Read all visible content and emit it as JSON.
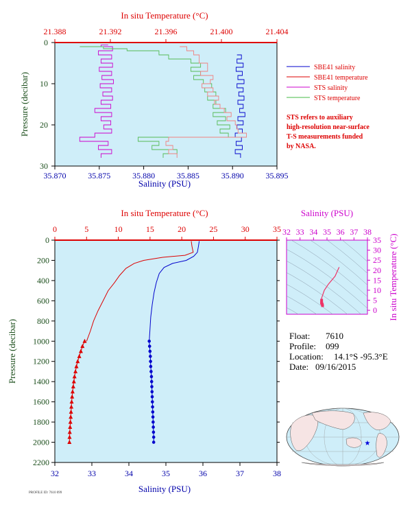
{
  "chart_data": [
    {
      "type": "line",
      "title_top": "In situ Temperature (°C)",
      "xlabel": "Salinity (PSU)",
      "ylabel": "Pressure (decibar)",
      "salinity_range": [
        35.87,
        35.895
      ],
      "salinity_ticks": [
        "35.870",
        "35.875",
        "35.880",
        "35.885",
        "35.890",
        "35.895"
      ],
      "temperature_range": [
        21.388,
        21.404
      ],
      "temperature_ticks": [
        "21.388",
        "21.392",
        "21.396",
        "21.400",
        "21.404"
      ],
      "pressure_range": [
        0,
        30
      ],
      "pressure_ticks": [
        "0",
        "10",
        "20",
        "30"
      ],
      "legend": [
        {
          "name": "SBE41 salinity",
          "color": "#0000cc"
        },
        {
          "name": "SBE41 temperature",
          "color": "#dd0000"
        },
        {
          "name": "STS salinity",
          "color": "#cc00cc"
        },
        {
          "name": "STS temperature",
          "color": "#44bb44"
        }
      ],
      "note": [
        "STS refers to auxiliary",
        "high-resolution near-surface",
        "T-S measurements funded",
        "by NASA."
      ],
      "series": [
        {
          "name": "SBE41 salinity",
          "axis": "salinity",
          "points": [
            [
              35.8905,
              3
            ],
            [
              35.891,
              4
            ],
            [
              35.8905,
              5
            ],
            [
              35.8912,
              6
            ],
            [
              35.8904,
              7
            ],
            [
              35.8911,
              8
            ],
            [
              35.8906,
              9
            ],
            [
              35.8913,
              10
            ],
            [
              35.8905,
              11
            ],
            [
              35.8912,
              12
            ],
            [
              35.8907,
              13
            ],
            [
              35.8913,
              14
            ],
            [
              35.8906,
              15
            ],
            [
              35.8912,
              16
            ],
            [
              35.8908,
              17
            ],
            [
              35.8914,
              18
            ],
            [
              35.8906,
              19
            ],
            [
              35.8912,
              20
            ],
            [
              35.8905,
              21
            ],
            [
              35.8911,
              22
            ],
            [
              35.8903,
              23
            ],
            [
              35.891,
              24
            ],
            [
              35.8904,
              25
            ],
            [
              35.8911,
              26
            ],
            [
              35.8903,
              27
            ],
            [
              35.8909,
              28
            ]
          ]
        },
        {
          "name": "STS salinity",
          "axis": "salinity",
          "points": [
            [
              35.876,
              0.6
            ],
            [
              35.8752,
              1
            ],
            [
              35.8765,
              2
            ],
            [
              35.8749,
              3
            ],
            [
              35.8764,
              4
            ],
            [
              35.8752,
              5
            ],
            [
              35.8765,
              6
            ],
            [
              35.875,
              7
            ],
            [
              35.8764,
              8
            ],
            [
              35.8753,
              9
            ],
            [
              35.8766,
              10
            ],
            [
              35.8751,
              11
            ],
            [
              35.8764,
              12
            ],
            [
              35.8754,
              13
            ],
            [
              35.8765,
              14
            ],
            [
              35.8752,
              15
            ],
            [
              35.8763,
              16
            ],
            [
              35.8745,
              17
            ],
            [
              35.8764,
              18
            ],
            [
              35.8752,
              19
            ],
            [
              35.8763,
              20
            ],
            [
              35.8755,
              21
            ],
            [
              35.8764,
              22
            ],
            [
              35.8745,
              23
            ],
            [
              35.8728,
              24
            ],
            [
              35.876,
              25
            ],
            [
              35.8749,
              26
            ],
            [
              35.8764,
              27
            ],
            [
              35.8752,
              28
            ]
          ]
        },
        {
          "name": "STS temperature",
          "axis": "temperature",
          "points": [
            [
              21.3898,
              1
            ],
            [
              21.3915,
              1.5
            ],
            [
              21.3932,
              2
            ],
            [
              21.3955,
              3
            ],
            [
              21.3962,
              4
            ],
            [
              21.3978,
              5
            ],
            [
              21.3985,
              6
            ],
            [
              21.3978,
              7
            ],
            [
              21.3985,
              8
            ],
            [
              21.398,
              9
            ],
            [
              21.3987,
              10
            ],
            [
              21.3993,
              11
            ],
            [
              21.3988,
              12
            ],
            [
              21.3996,
              13
            ],
            [
              21.399,
              14
            ],
            [
              21.3996,
              15
            ],
            [
              21.3994,
              16
            ],
            [
              21.4003,
              17
            ],
            [
              21.3994,
              18
            ],
            [
              21.4003,
              19
            ],
            [
              21.3997,
              20
            ],
            [
              21.4006,
              21
            ],
            [
              21.3999,
              22
            ],
            [
              21.4005,
              23
            ],
            [
              21.394,
              24
            ],
            [
              21.3955,
              25
            ],
            [
              21.395,
              26
            ],
            [
              21.3968,
              27
            ],
            [
              21.3958,
              28
            ]
          ]
        },
        {
          "name": "SBE41 temperature",
          "axis": "temperature",
          "points": [
            [
              21.397,
              1
            ],
            [
              21.3975,
              2
            ],
            [
              21.398,
              3
            ],
            [
              21.3984,
              4
            ],
            [
              21.3984,
              5
            ],
            [
              21.399,
              6
            ],
            [
              21.399,
              7
            ],
            [
              21.3985,
              8
            ],
            [
              21.3994,
              9
            ],
            [
              21.3992,
              10
            ],
            [
              21.3986,
              11
            ],
            [
              21.3994,
              12
            ],
            [
              21.399,
              13
            ],
            [
              21.3998,
              14
            ],
            [
              21.3995,
              15
            ],
            [
              21.3999,
              16
            ],
            [
              21.4002,
              17
            ],
            [
              21.4007,
              18
            ],
            [
              21.4004,
              19
            ],
            [
              21.401,
              20
            ],
            [
              21.4011,
              21
            ],
            [
              21.4012,
              22
            ],
            [
              21.4018,
              23
            ],
            [
              21.3962,
              24
            ],
            [
              21.396,
              25
            ],
            [
              21.3965,
              26
            ],
            [
              21.3962,
              27
            ],
            [
              21.3968,
              28
            ]
          ]
        }
      ]
    },
    {
      "type": "line",
      "title_top": "In situ Temperature (°C)",
      "xlabel": "Salinity (PSU)",
      "ylabel": "Pressure (decibar)",
      "salinity_range": [
        32,
        38
      ],
      "salinity_ticks": [
        "32",
        "33",
        "34",
        "35",
        "36",
        "37",
        "38"
      ],
      "temperature_range": [
        0,
        35
      ],
      "temperature_ticks": [
        "0",
        "5",
        "10",
        "15",
        "20",
        "25",
        "30",
        "35"
      ],
      "pressure_range": [
        0,
        2200
      ],
      "pressure_ticks": [
        "0",
        "200",
        "400",
        "600",
        "800",
        "1000",
        "1200",
        "1400",
        "1600",
        "1800",
        "2000",
        "2200"
      ],
      "series": [
        {
          "name": "Temperature",
          "axis": "temperature",
          "color": "#dd0000",
          "points": [
            [
              21.5,
              10
            ],
            [
              21.6,
              60
            ],
            [
              21.8,
              120
            ],
            [
              20.5,
              150
            ],
            [
              17,
              170
            ],
            [
              14,
              200
            ],
            [
              12.5,
              230
            ],
            [
              11.2,
              280
            ],
            [
              10.2,
              350
            ],
            [
              9.4,
              420
            ],
            [
              8.4,
              500
            ],
            [
              7.6,
              600
            ],
            [
              6.8,
              700
            ],
            [
              6.1,
              800
            ],
            [
              5.6,
              900
            ],
            [
              5.0,
              1000
            ]
          ]
        },
        {
          "name": "Salinity",
          "axis": "salinity",
          "color": "#0000cc",
          "points": [
            [
              35.9,
              10
            ],
            [
              35.88,
              60
            ],
            [
              35.85,
              120
            ],
            [
              35.75,
              160
            ],
            [
              35.55,
              200
            ],
            [
              35.18,
              230
            ],
            [
              34.95,
              270
            ],
            [
              34.82,
              330
            ],
            [
              34.74,
              420
            ],
            [
              34.68,
              520
            ],
            [
              34.63,
              640
            ],
            [
              34.59,
              760
            ],
            [
              34.57,
              880
            ],
            [
              34.55,
              1000
            ]
          ]
        },
        {
          "name": "Temperature (deep)",
          "axis": "temperature",
          "color": "#dd0000",
          "marker": "triangle",
          "points": [
            [
              4.7,
              1000
            ],
            [
              4.35,
              1050
            ],
            [
              4.1,
              1100
            ],
            [
              3.85,
              1150
            ],
            [
              3.6,
              1200
            ],
            [
              3.4,
              1250
            ],
            [
              3.25,
              1300
            ],
            [
              3.1,
              1350
            ],
            [
              3.0,
              1400
            ],
            [
              2.9,
              1450
            ],
            [
              2.8,
              1500
            ],
            [
              2.72,
              1550
            ],
            [
              2.65,
              1600
            ],
            [
              2.6,
              1650
            ],
            [
              2.55,
              1700
            ],
            [
              2.5,
              1750
            ],
            [
              2.45,
              1800
            ],
            [
              2.4,
              1850
            ],
            [
              2.35,
              1900
            ],
            [
              2.32,
              1950
            ],
            [
              2.3,
              2000
            ]
          ]
        },
        {
          "name": "Salinity (deep)",
          "axis": "salinity",
          "color": "#0000cc",
          "marker": "dot",
          "points": [
            [
              34.55,
              1000
            ],
            [
              34.56,
              1050
            ],
            [
              34.57,
              1100
            ],
            [
              34.58,
              1150
            ],
            [
              34.585,
              1200
            ],
            [
              34.59,
              1250
            ],
            [
              34.6,
              1300
            ],
            [
              34.61,
              1350
            ],
            [
              34.615,
              1400
            ],
            [
              34.62,
              1450
            ],
            [
              34.625,
              1500
            ],
            [
              34.63,
              1550
            ],
            [
              34.635,
              1600
            ],
            [
              34.64,
              1650
            ],
            [
              34.645,
              1700
            ],
            [
              34.65,
              1750
            ],
            [
              34.655,
              1800
            ],
            [
              34.66,
              1850
            ],
            [
              34.665,
              1900
            ],
            [
              34.67,
              1950
            ],
            [
              34.67,
              2000
            ]
          ]
        }
      ]
    },
    {
      "type": "line",
      "title_top": "Salinity (PSU)",
      "ylabel_right": "In situ Temperature (°C)",
      "salinity_range": [
        32,
        38
      ],
      "salinity_ticks": [
        "32",
        "33",
        "34",
        "35",
        "36",
        "37",
        "38"
      ],
      "temperature_range": [
        -2,
        35
      ],
      "temperature_ticks": [
        "0",
        "5",
        "10",
        "15",
        "20",
        "25",
        "30",
        "35"
      ],
      "series": [
        {
          "name": "T-S",
          "color": "#ee3366",
          "points": [
            [
              35.9,
              21.5
            ],
            [
              35.6,
              17
            ],
            [
              35.1,
              13
            ],
            [
              34.8,
              10
            ],
            [
              34.7,
              8
            ],
            [
              34.6,
              6
            ],
            [
              34.6,
              5
            ],
            [
              34.6,
              4
            ],
            [
              34.6,
              3.5
            ],
            [
              34.65,
              3
            ],
            [
              34.67,
              2.3
            ]
          ]
        }
      ]
    }
  ],
  "info": {
    "float_label": "Float:",
    "float_value": "7610",
    "profile_label": "Profile:",
    "profile_value": "099",
    "location_label": "Location:",
    "location_value": "14.1°S  -95.3°E",
    "date_label": "Date:",
    "date_value": "09/16/2015"
  },
  "footer_stamp": "PROFILE ID: 7610 099"
}
